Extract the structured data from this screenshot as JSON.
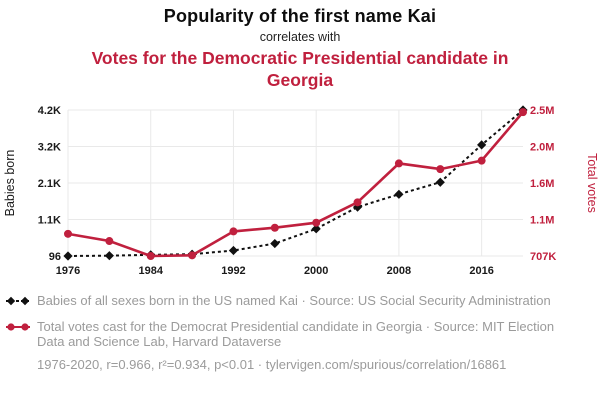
{
  "colors": {
    "accent_red": "#c0203e",
    "series_black": "#111111",
    "legend_gray": "#9b9b9b",
    "gridline": "#e9e9e9"
  },
  "header": {
    "title": "Popularity of the first name Kai",
    "connector": "correlates with",
    "subtitle": "Votes for the Democratic Presidential candidate in Georgia"
  },
  "legend": {
    "items": [
      {
        "text": "Babies of all sexes born in the US named Kai · Source: US Social Security Administration"
      },
      {
        "text": "Total votes cast for the Democrat Presidential candidate in Georgia · Source: MIT Election Data and Science Lab, Harvard Dataverse"
      }
    ],
    "footer": "1976-2020, r=0.966, r²=0.934, p<0.01 · tylervigen.com/spurious/correlation/16861"
  },
  "chart_data": {
    "type": "line",
    "title": "Popularity of the first name Kai",
    "x": [
      1976,
      1980,
      1984,
      1988,
      1992,
      1996,
      2000,
      2004,
      2008,
      2012,
      2016,
      2020
    ],
    "x_range": [
      1976,
      2020
    ],
    "x_ticks": [
      1976,
      1984,
      1992,
      2000,
      2008,
      2016
    ],
    "grid": true,
    "left_axis": {
      "label": "Babies born",
      "min": 96,
      "max": 4200,
      "ticks": [
        {
          "value": 96,
          "label": "96"
        },
        {
          "value": 1122,
          "label": "1.1K"
        },
        {
          "value": 2148,
          "label": "2.1K"
        },
        {
          "value": 3174,
          "label": "3.2K"
        },
        {
          "value": 4200,
          "label": "4.2K"
        }
      ]
    },
    "right_axis": {
      "label": "Total votes",
      "min": 707000,
      "max": 2500000,
      "ticks": [
        {
          "value": 707000,
          "label": "707K"
        },
        {
          "value": 1155000,
          "label": "1.1M"
        },
        {
          "value": 1603000,
          "label": "1.6M"
        },
        {
          "value": 2052000,
          "label": "2.0M"
        },
        {
          "value": 2500000,
          "label": "2.5M"
        }
      ]
    },
    "series": [
      {
        "name": "Babies of all sexes born in the US named Kai",
        "axis": "left",
        "color": "#111111",
        "line_style": "dashed",
        "marker": "diamond",
        "values": [
          96,
          105,
          130,
          147,
          250,
          446,
          860,
          1470,
          1830,
          2170,
          3220,
          4200
        ]
      },
      {
        "name": "Total votes cast for the Democrat Presidential candidate in Georgia",
        "axis": "right",
        "color": "#c0203e",
        "line_style": "solid",
        "marker": "circle",
        "values": [
          979000,
          891000,
          707000,
          715000,
          1009000,
          1054000,
          1116000,
          1366000,
          1844000,
          1774000,
          1878000,
          2474000
        ]
      }
    ]
  }
}
